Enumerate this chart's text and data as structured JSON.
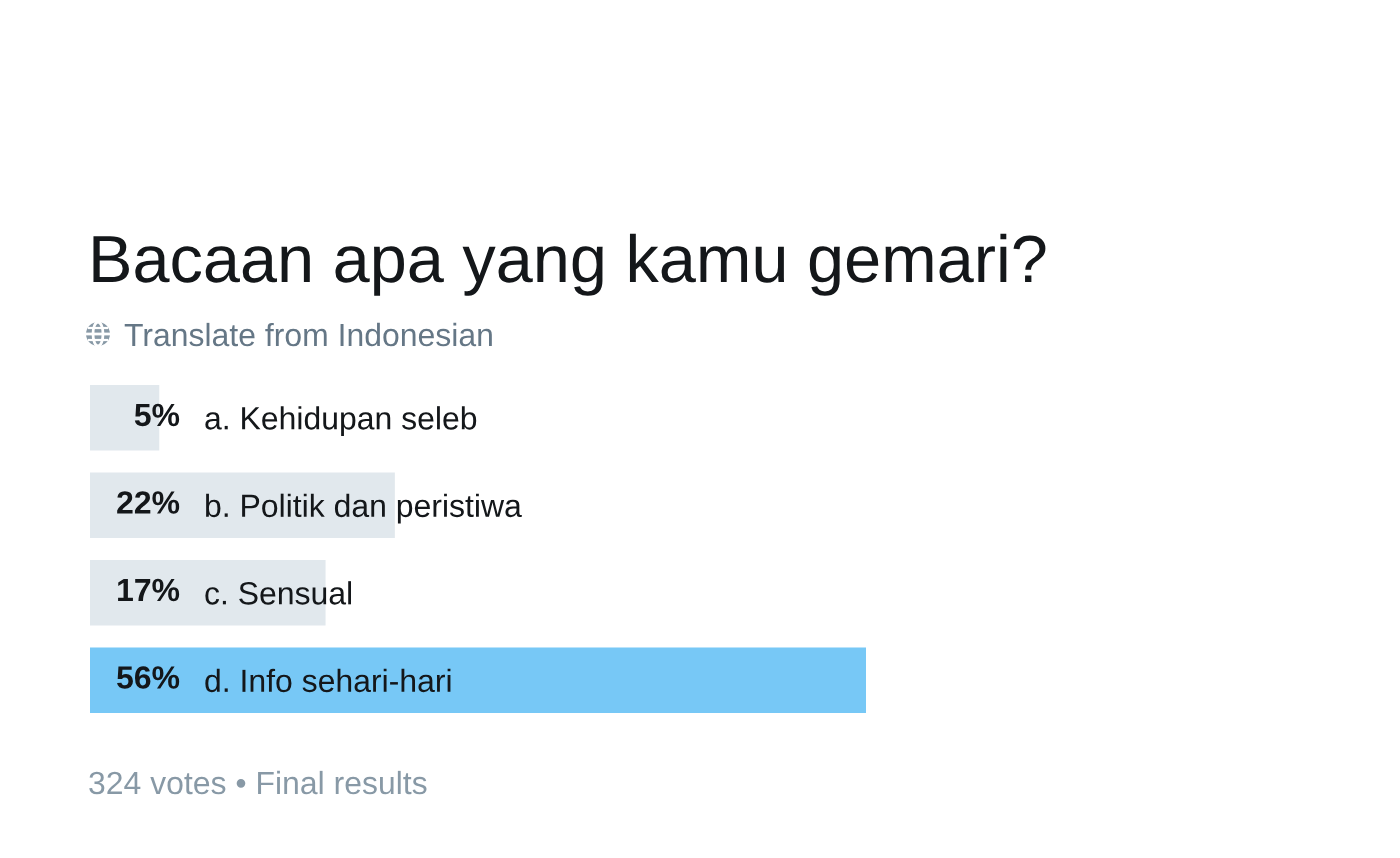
{
  "chart_data": {
    "type": "bar",
    "orientation": "horizontal",
    "title": "Bacaan apa yang kamu gemari?",
    "subtitle": "Translate from Indonesian",
    "categories": [
      "a. Kehidupan seleb",
      "b. Politik dan peristiwa",
      "c. Sensual",
      "d. Info sehari-hari"
    ],
    "values": [
      5,
      22,
      17,
      56
    ],
    "colors": [
      "#e1e8ed",
      "#e1e8ed",
      "#e1e8ed",
      "#77c8f6"
    ],
    "value_labels": [
      "5%",
      "22%",
      "17%",
      "56%"
    ],
    "annotations": [
      "324 votes • Final results"
    ],
    "tick_labels": "y",
    "grid": false,
    "legend": false
  }
}
